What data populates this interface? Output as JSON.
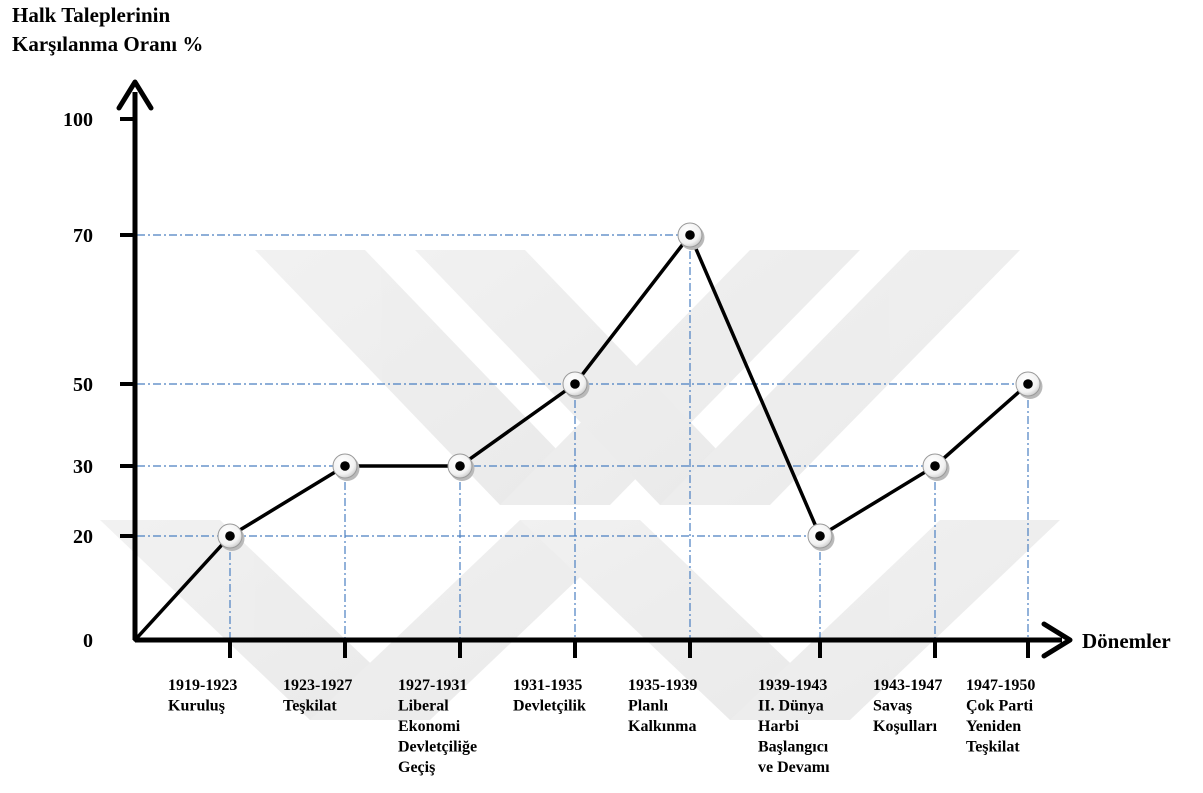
{
  "chart_data": {
    "type": "line",
    "ylabel": [
      "Halk Taleplerinin",
      "Karşılanma Oranı %"
    ],
    "xlabel": "Dönemler",
    "yticks": [
      0,
      20,
      30,
      50,
      70,
      100
    ],
    "ylim": [
      0,
      100
    ],
    "grid": "dash-dot guide lines at data points",
    "origin": {
      "x": "",
      "y": 0
    },
    "categories": [
      [
        "1919-1923",
        "Kuruluş"
      ],
      [
        "1923-1927",
        "Teşkilat"
      ],
      [
        "1927-1931",
        "Liberal",
        "Ekonomi",
        "Devletçiliğe",
        "Geçiş"
      ],
      [
        "1931-1935",
        "Devletçilik"
      ],
      [
        "1935-1939",
        "Planlı",
        "Kalkınma"
      ],
      [
        "1939-1943",
        "II. Dünya",
        "Harbi",
        "Başlangıcı",
        "ve Devamı"
      ],
      [
        "1943-1947",
        "Savaş",
        "Koşulları"
      ],
      [
        "1947-1950",
        "Çok Parti",
        "Yeniden",
        "Teşkilat"
      ]
    ],
    "values": [
      20,
      30,
      30,
      50,
      70,
      20,
      30,
      50
    ],
    "colors": {
      "line": "#000000",
      "guide": "#4a7fc1",
      "marker_fill": "#ffffff",
      "marker_dot": "#000000"
    }
  }
}
